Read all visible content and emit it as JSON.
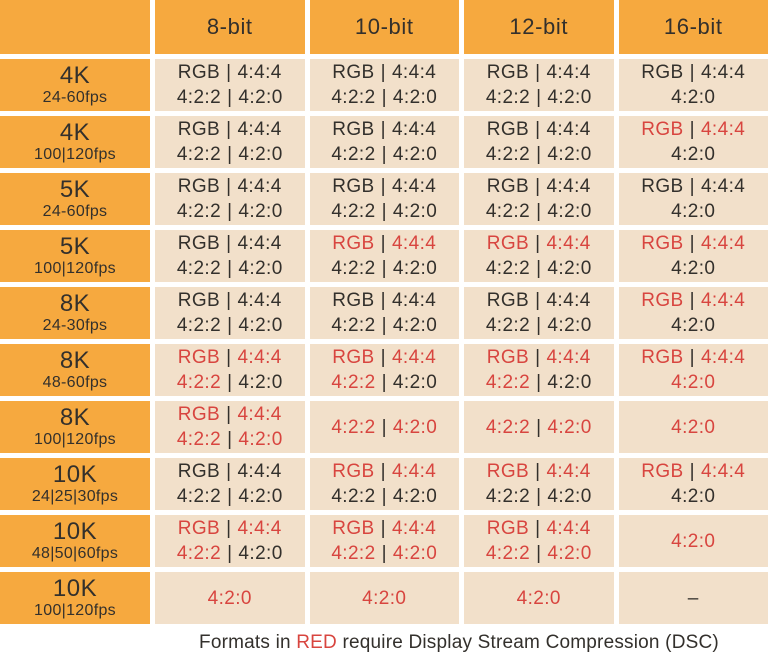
{
  "colors": {
    "orange": "#F6A93F",
    "peach": "#F2E0CA",
    "red": "#D8453F",
    "dark": "#33302C",
    "background": "#FFFFFF"
  },
  "chart_data": {
    "type": "table",
    "title": "",
    "legend_note": "red text = format requires Display Stream Compression (DSC)",
    "columns": [
      "8-bit",
      "10-bit",
      "12-bit",
      "16-bit"
    ],
    "separator": "|",
    "rows": [
      {
        "label": "4K",
        "sublabel": "24-60fps",
        "cells": [
          [
            [
              [
                "RGB",
                0
              ],
              [
                "4:4:4",
                0
              ]
            ],
            [
              [
                "4:2:2",
                0
              ],
              [
                "4:2:0",
                0
              ]
            ]
          ],
          [
            [
              [
                "RGB",
                0
              ],
              [
                "4:4:4",
                0
              ]
            ],
            [
              [
                "4:2:2",
                0
              ],
              [
                "4:2:0",
                0
              ]
            ]
          ],
          [
            [
              [
                "RGB",
                0
              ],
              [
                "4:4:4",
                0
              ]
            ],
            [
              [
                "4:2:2",
                0
              ],
              [
                "4:2:0",
                0
              ]
            ]
          ],
          [
            [
              [
                "RGB",
                0
              ],
              [
                "4:4:4",
                0
              ]
            ],
            [
              [
                "4:2:0",
                0
              ]
            ]
          ]
        ]
      },
      {
        "label": "4K",
        "sublabel": "100|120fps",
        "cells": [
          [
            [
              [
                "RGB",
                0
              ],
              [
                "4:4:4",
                0
              ]
            ],
            [
              [
                "4:2:2",
                0
              ],
              [
                "4:2:0",
                0
              ]
            ]
          ],
          [
            [
              [
                "RGB",
                0
              ],
              [
                "4:4:4",
                0
              ]
            ],
            [
              [
                "4:2:2",
                0
              ],
              [
                "4:2:0",
                0
              ]
            ]
          ],
          [
            [
              [
                "RGB",
                0
              ],
              [
                "4:4:4",
                0
              ]
            ],
            [
              [
                "4:2:2",
                0
              ],
              [
                "4:2:0",
                0
              ]
            ]
          ],
          [
            [
              [
                "RGB",
                1
              ],
              [
                "4:4:4",
                1
              ]
            ],
            [
              [
                "4:2:0",
                0
              ]
            ]
          ]
        ]
      },
      {
        "label": "5K",
        "sublabel": "24-60fps",
        "cells": [
          [
            [
              [
                "RGB",
                0
              ],
              [
                "4:4:4",
                0
              ]
            ],
            [
              [
                "4:2:2",
                0
              ],
              [
                "4:2:0",
                0
              ]
            ]
          ],
          [
            [
              [
                "RGB",
                0
              ],
              [
                "4:4:4",
                0
              ]
            ],
            [
              [
                "4:2:2",
                0
              ],
              [
                "4:2:0",
                0
              ]
            ]
          ],
          [
            [
              [
                "RGB",
                0
              ],
              [
                "4:4:4",
                0
              ]
            ],
            [
              [
                "4:2:2",
                0
              ],
              [
                "4:2:0",
                0
              ]
            ]
          ],
          [
            [
              [
                "RGB",
                0
              ],
              [
                "4:4:4",
                0
              ]
            ],
            [
              [
                "4:2:0",
                0
              ]
            ]
          ]
        ]
      },
      {
        "label": "5K",
        "sublabel": "100|120fps",
        "cells": [
          [
            [
              [
                "RGB",
                0
              ],
              [
                "4:4:4",
                0
              ]
            ],
            [
              [
                "4:2:2",
                0
              ],
              [
                "4:2:0",
                0
              ]
            ]
          ],
          [
            [
              [
                "RGB",
                1
              ],
              [
                "4:4:4",
                1
              ]
            ],
            [
              [
                "4:2:2",
                0
              ],
              [
                "4:2:0",
                0
              ]
            ]
          ],
          [
            [
              [
                "RGB",
                1
              ],
              [
                "4:4:4",
                1
              ]
            ],
            [
              [
                "4:2:2",
                0
              ],
              [
                "4:2:0",
                0
              ]
            ]
          ],
          [
            [
              [
                "RGB",
                1
              ],
              [
                "4:4:4",
                1
              ]
            ],
            [
              [
                "4:2:0",
                0
              ]
            ]
          ]
        ]
      },
      {
        "label": "8K",
        "sublabel": "24-30fps",
        "cells": [
          [
            [
              [
                "RGB",
                0
              ],
              [
                "4:4:4",
                0
              ]
            ],
            [
              [
                "4:2:2",
                0
              ],
              [
                "4:2:0",
                0
              ]
            ]
          ],
          [
            [
              [
                "RGB",
                0
              ],
              [
                "4:4:4",
                0
              ]
            ],
            [
              [
                "4:2:2",
                0
              ],
              [
                "4:2:0",
                0
              ]
            ]
          ],
          [
            [
              [
                "RGB",
                0
              ],
              [
                "4:4:4",
                0
              ]
            ],
            [
              [
                "4:2:2",
                0
              ],
              [
                "4:2:0",
                0
              ]
            ]
          ],
          [
            [
              [
                "RGB",
                1
              ],
              [
                "4:4:4",
                1
              ]
            ],
            [
              [
                "4:2:0",
                0
              ]
            ]
          ]
        ]
      },
      {
        "label": "8K",
        "sublabel": "48-60fps",
        "cells": [
          [
            [
              [
                "RGB",
                1
              ],
              [
                "4:4:4",
                1
              ]
            ],
            [
              [
                "4:2:2",
                1
              ],
              [
                "4:2:0",
                0
              ]
            ]
          ],
          [
            [
              [
                "RGB",
                1
              ],
              [
                "4:4:4",
                1
              ]
            ],
            [
              [
                "4:2:2",
                1
              ],
              [
                "4:2:0",
                0
              ]
            ]
          ],
          [
            [
              [
                "RGB",
                1
              ],
              [
                "4:4:4",
                1
              ]
            ],
            [
              [
                "4:2:2",
                1
              ],
              [
                "4:2:0",
                0
              ]
            ]
          ],
          [
            [
              [
                "RGB",
                1
              ],
              [
                "4:4:4",
                1
              ]
            ],
            [
              [
                "4:2:0",
                1
              ]
            ]
          ]
        ]
      },
      {
        "label": "8K",
        "sublabel": "100|120fps",
        "cells": [
          [
            [
              [
                "RGB",
                1
              ],
              [
                "4:4:4",
                1
              ]
            ],
            [
              [
                "4:2:2",
                1
              ],
              [
                "4:2:0",
                1
              ]
            ]
          ],
          [
            [
              [
                "4:2:2",
                1
              ],
              [
                "4:2:0",
                1
              ]
            ]
          ],
          [
            [
              [
                "4:2:2",
                1
              ],
              [
                "4:2:0",
                1
              ]
            ]
          ],
          [
            [
              [
                "4:2:0",
                1
              ]
            ]
          ]
        ]
      },
      {
        "label": "10K",
        "sublabel": "24|25|30fps",
        "cells": [
          [
            [
              [
                "RGB",
                0
              ],
              [
                "4:4:4",
                0
              ]
            ],
            [
              [
                "4:2:2",
                0
              ],
              [
                "4:2:0",
                0
              ]
            ]
          ],
          [
            [
              [
                "RGB",
                1
              ],
              [
                "4:4:4",
                1
              ]
            ],
            [
              [
                "4:2:2",
                0
              ],
              [
                "4:2:0",
                0
              ]
            ]
          ],
          [
            [
              [
                "RGB",
                1
              ],
              [
                "4:4:4",
                1
              ]
            ],
            [
              [
                "4:2:2",
                0
              ],
              [
                "4:2:0",
                0
              ]
            ]
          ],
          [
            [
              [
                "RGB",
                1
              ],
              [
                "4:4:4",
                1
              ]
            ],
            [
              [
                "4:2:0",
                0
              ]
            ]
          ]
        ]
      },
      {
        "label": "10K",
        "sublabel": "48|50|60fps",
        "cells": [
          [
            [
              [
                "RGB",
                1
              ],
              [
                "4:4:4",
                1
              ]
            ],
            [
              [
                "4:2:2",
                1
              ],
              [
                "4:2:0",
                0
              ]
            ]
          ],
          [
            [
              [
                "RGB",
                1
              ],
              [
                "4:4:4",
                1
              ]
            ],
            [
              [
                "4:2:2",
                1
              ],
              [
                "4:2:0",
                1
              ]
            ]
          ],
          [
            [
              [
                "RGB",
                1
              ],
              [
                "4:4:4",
                1
              ]
            ],
            [
              [
                "4:2:2",
                1
              ],
              [
                "4:2:0",
                1
              ]
            ]
          ],
          [
            [
              [
                "4:2:0",
                1
              ]
            ]
          ]
        ]
      },
      {
        "label": "10K",
        "sublabel": "100|120fps",
        "cells": [
          [
            [
              [
                "4:2:0",
                1
              ]
            ]
          ],
          [
            [
              [
                "4:2:0",
                1
              ]
            ]
          ],
          [
            [
              [
                "4:2:0",
                1
              ]
            ]
          ],
          [
            [
              [
                "–",
                0
              ]
            ]
          ]
        ]
      }
    ],
    "footnote": {
      "prefix": "Formats in ",
      "highlight": "RED",
      "suffix": " require Display Stream Compression (DSC)"
    }
  }
}
